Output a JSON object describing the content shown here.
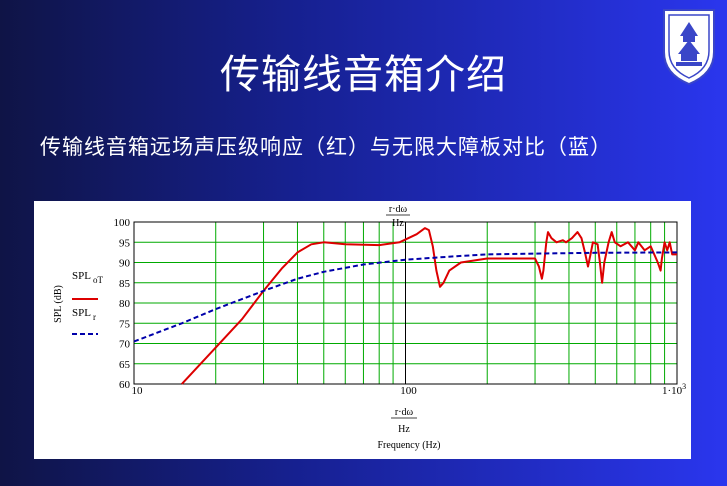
{
  "slide": {
    "title": "传输线音箱介绍",
    "subtitle": "传输线音箱远场声压级响应（红）与无限大障板对比（蓝）"
  },
  "logo": {
    "icon": "university-seal-icon",
    "color": "#3a46c8"
  },
  "chart_data": {
    "type": "line",
    "ylabel": "SPL (dB)",
    "xlabel": "Frequency (Hz)",
    "x_scale": "log",
    "xlim": [
      10,
      1000
    ],
    "ylim": [
      60,
      100
    ],
    "y_ticks": [
      "60",
      "65",
      "70",
      "75",
      "80",
      "85",
      "90",
      "95",
      "100"
    ],
    "x_ticks": [
      "10",
      "100"
    ],
    "x_tick_end": {
      "base": "1·10",
      "exp": "3"
    },
    "marker_label": {
      "numerator": "r·dω",
      "denominator": "Hz"
    },
    "grid": true,
    "grid_color": "#00aa00",
    "legend": [
      {
        "name": "SPL",
        "sub": "oT",
        "color": "#dd0000",
        "dash": "solid"
      },
      {
        "name": "SPL",
        "sub": "r",
        "color": "#0000aa",
        "dash": "dashed"
      }
    ],
    "series": [
      {
        "name": "SPL oT",
        "color": "#dd0000",
        "points": [
          [
            15,
            60
          ],
          [
            20,
            69
          ],
          [
            25,
            76
          ],
          [
            30,
            83
          ],
          [
            35,
            88.5
          ],
          [
            40,
            92.5
          ],
          [
            45,
            94.5
          ],
          [
            50,
            95
          ],
          [
            60,
            94.5
          ],
          [
            80,
            94.3
          ],
          [
            95,
            95
          ],
          [
            110,
            97
          ],
          [
            118,
            98.5
          ],
          [
            122,
            98
          ],
          [
            126,
            94
          ],
          [
            130,
            88
          ],
          [
            134,
            84
          ],
          [
            138,
            85
          ],
          [
            145,
            88
          ],
          [
            160,
            90
          ],
          [
            200,
            91
          ],
          [
            300,
            91
          ],
          [
            310,
            89
          ],
          [
            318,
            86
          ],
          [
            322,
            88
          ],
          [
            330,
            95
          ],
          [
            335,
            97.5
          ],
          [
            345,
            96
          ],
          [
            360,
            95
          ],
          [
            380,
            95.5
          ],
          [
            390,
            95
          ],
          [
            410,
            96
          ],
          [
            430,
            97.5
          ],
          [
            445,
            96
          ],
          [
            460,
            92
          ],
          [
            470,
            89
          ],
          [
            480,
            92
          ],
          [
            490,
            95
          ],
          [
            510,
            94.5
          ],
          [
            520,
            90
          ],
          [
            530,
            85
          ],
          [
            540,
            90
          ],
          [
            560,
            95
          ],
          [
            575,
            97.5
          ],
          [
            590,
            95
          ],
          [
            620,
            94
          ],
          [
            660,
            95
          ],
          [
            700,
            93
          ],
          [
            720,
            95
          ],
          [
            760,
            93
          ],
          [
            800,
            94
          ],
          [
            850,
            90
          ],
          [
            870,
            88
          ],
          [
            880,
            91
          ],
          [
            900,
            95
          ],
          [
            920,
            93
          ],
          [
            940,
            95
          ],
          [
            960,
            92
          ],
          [
            1000,
            92
          ]
        ]
      },
      {
        "name": "SPL r",
        "color": "#0000aa",
        "points": [
          [
            10,
            70.5
          ],
          [
            15,
            75
          ],
          [
            20,
            78.5
          ],
          [
            30,
            83
          ],
          [
            40,
            86
          ],
          [
            50,
            87.7
          ],
          [
            70,
            89.5
          ],
          [
            100,
            90.7
          ],
          [
            150,
            91.5
          ],
          [
            200,
            92
          ],
          [
            300,
            92.2
          ],
          [
            500,
            92.4
          ],
          [
            1000,
            92.5
          ]
        ]
      }
    ]
  }
}
